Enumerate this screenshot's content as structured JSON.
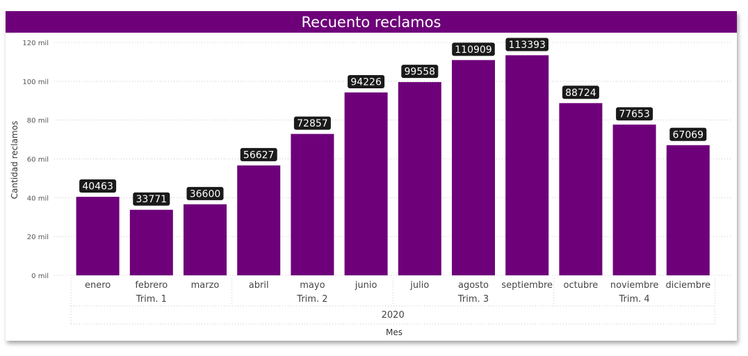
{
  "chart_data": {
    "type": "bar",
    "title": "Recuento reclamos",
    "xlabel": "Mes",
    "ylabel": "Cantidad reclamos",
    "ylim": [
      0,
      120000
    ],
    "yticks": [
      {
        "value": 0,
        "label": "0 mil"
      },
      {
        "value": 20000,
        "label": "20 mil"
      },
      {
        "value": 40000,
        "label": "40 mil"
      },
      {
        "value": 60000,
        "label": "60 mil"
      },
      {
        "value": 80000,
        "label": "80 mil"
      },
      {
        "value": 100000,
        "label": "100 mil"
      },
      {
        "value": 120000,
        "label": "120 mil"
      }
    ],
    "categories": [
      "enero",
      "febrero",
      "marzo",
      "abril",
      "mayo",
      "junio",
      "julio",
      "agosto",
      "septiembre",
      "octubre",
      "noviembre",
      "diciembre"
    ],
    "values": [
      40463,
      33771,
      36600,
      56627,
      72857,
      94226,
      99558,
      110909,
      113393,
      88724,
      77653,
      67069
    ],
    "quarters": [
      "Trim. 1",
      "Trim. 2",
      "Trim. 3",
      "Trim. 4"
    ],
    "year": "2020",
    "bar_color": "#6e007a",
    "label_bg": "#1a1a1a",
    "grid": true
  }
}
